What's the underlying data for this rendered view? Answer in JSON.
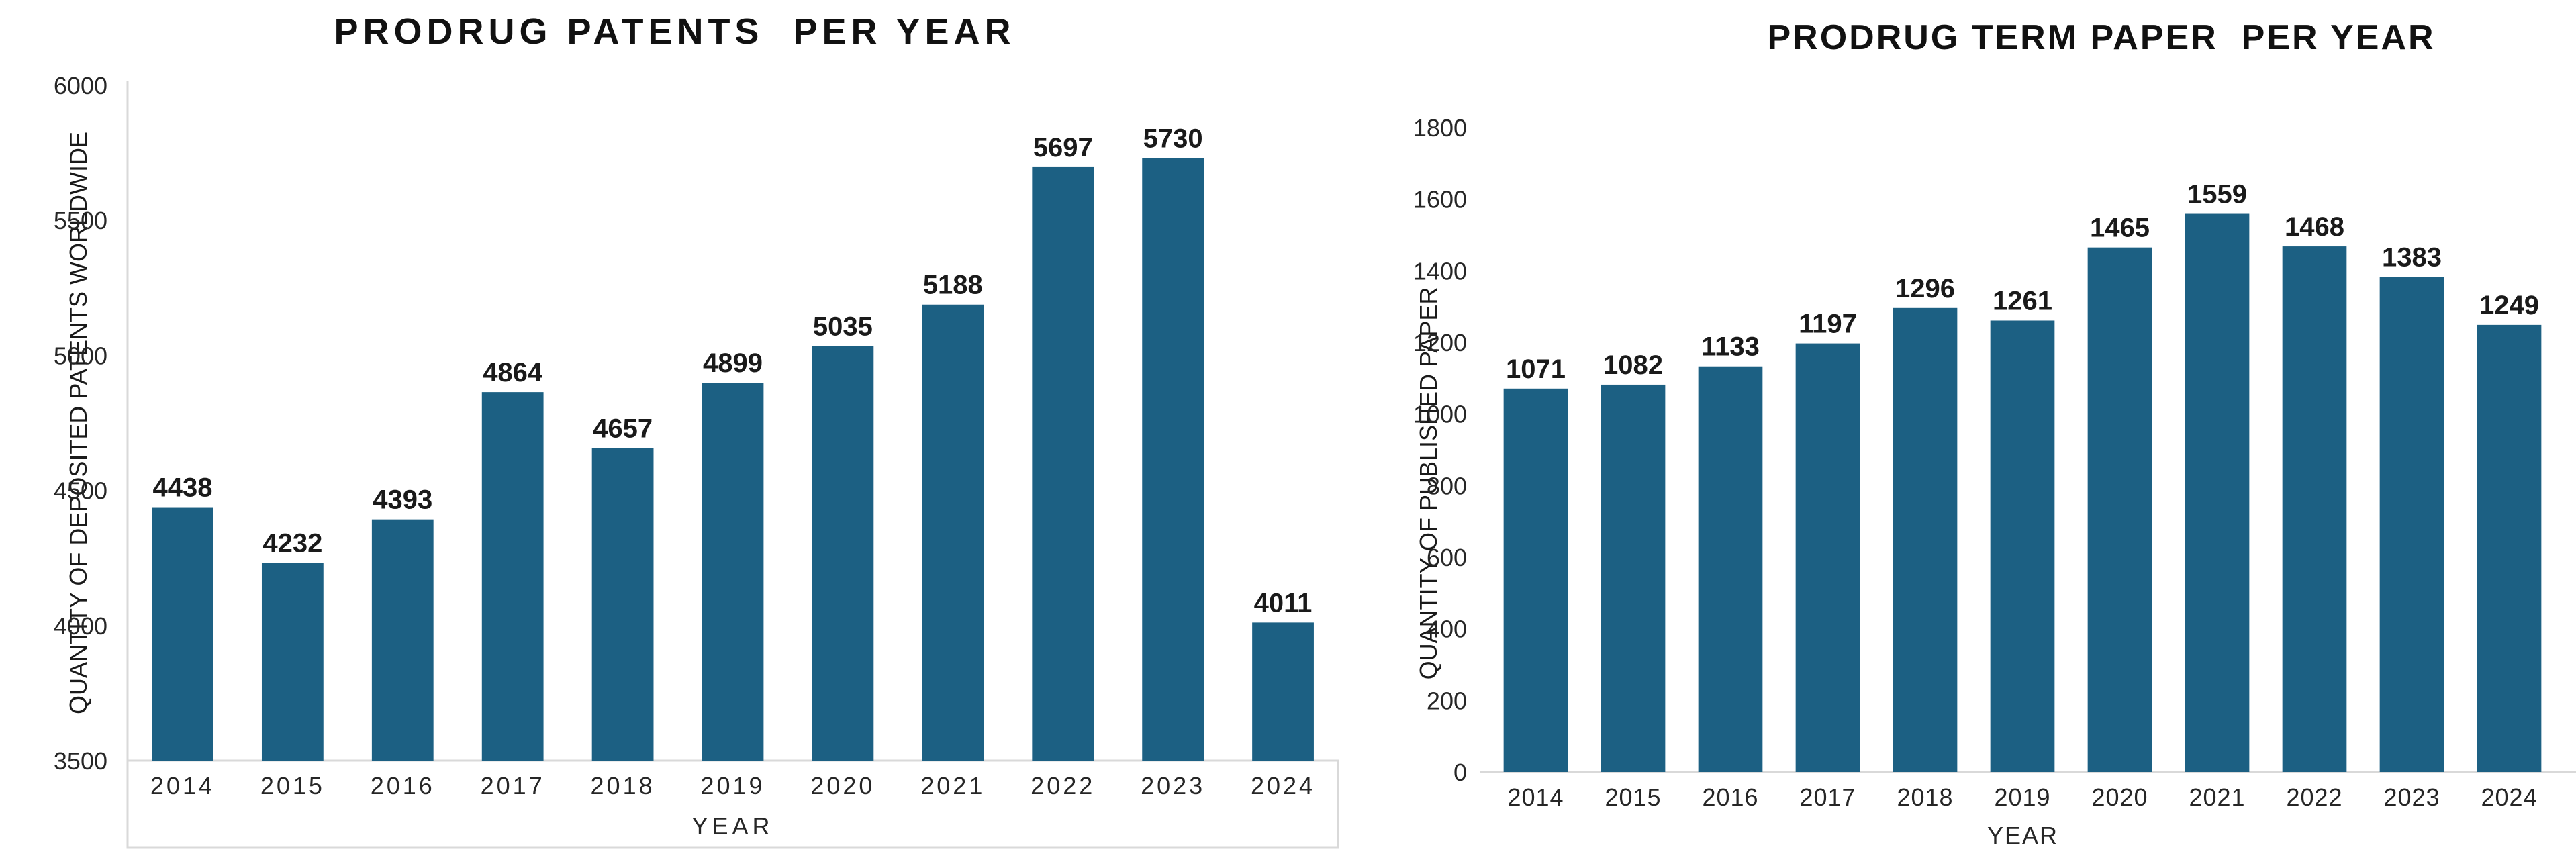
{
  "page": {
    "background": "#ffffff",
    "text_color": "#1a1a1a",
    "tick_color": "#262626",
    "axis_line_color": "#d9d9d9"
  },
  "chart_data": [
    {
      "type": "bar",
      "title": "PRODRUG PATENTS  PER YEAR",
      "ylabel": "QUANTITY OF DEPOSITED PATENTS WORLDWIDE",
      "xlabel": "YEAR",
      "categories": [
        "2014",
        "2015",
        "2016",
        "2017",
        "2018",
        "2019",
        "2020",
        "2021",
        "2022",
        "2023",
        "2024"
      ],
      "values": [
        4438,
        4232,
        4393,
        4864,
        4657,
        4899,
        5035,
        5188,
        5697,
        5730,
        4011
      ],
      "value_labels": true,
      "ylim": [
        3500,
        6000
      ],
      "ytick_step": 500,
      "yticks": [
        3500,
        4000,
        4500,
        5000,
        5500,
        6000
      ],
      "bar_color": "#1c6083",
      "grid": false,
      "legend": "none",
      "frame": "axis-line-and-label-box"
    },
    {
      "type": "bar",
      "title": "PRODRUG TERM PAPER  PER YEAR",
      "ylabel": "QUANTITY OF PUBLISHED PAPER",
      "xlabel": "YEAR",
      "categories": [
        "2014",
        "2015",
        "2016",
        "2017",
        "2018",
        "2019",
        "2020",
        "2021",
        "2022",
        "2023",
        "2024"
      ],
      "values": [
        1071,
        1082,
        1133,
        1197,
        1296,
        1261,
        1465,
        1559,
        1468,
        1383,
        1249
      ],
      "value_labels": true,
      "ylim": [
        0,
        1800
      ],
      "ytick_step": 200,
      "yticks": [
        0,
        200,
        400,
        600,
        800,
        1000,
        1200,
        1400,
        1600,
        1800
      ],
      "bar_color": "#1c6083",
      "grid": false,
      "legend": "none",
      "frame": "baseline-only"
    }
  ]
}
